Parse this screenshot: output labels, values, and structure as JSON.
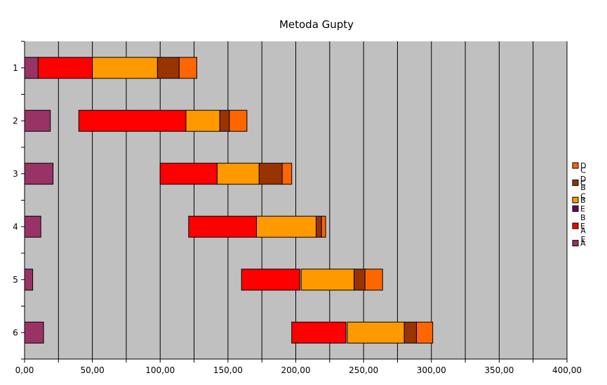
{
  "chart_data": {
    "type": "bar",
    "orientation": "horizontal",
    "stacked": true,
    "title": "Metoda Gupty",
    "xlabel": "",
    "ylabel": "",
    "xlim": [
      0,
      400
    ],
    "x_ticks": [
      0,
      25,
      50,
      75,
      100,
      125,
      150,
      175,
      200,
      225,
      250,
      275,
      300,
      325,
      350,
      375,
      400
    ],
    "x_tick_labels": [
      "0,00",
      "50,00",
      "100,00",
      "150,00",
      "200,00",
      "250,00",
      "300,00",
      "350,00",
      "400,00"
    ],
    "x_tick_label_values": [
      0,
      50,
      100,
      150,
      200,
      250,
      300,
      350,
      400
    ],
    "grid": "vertical",
    "categories": [
      "1",
      "2",
      "3",
      "4",
      "5",
      "6"
    ],
    "series": [
      {
        "name": "A",
        "color": "#993366",
        "visible": true,
        "values": [
          10,
          19,
          21,
          12,
          6,
          14
        ]
      },
      {
        "name": "E A",
        "color": "#c0c0c0",
        "visible": false,
        "values": [
          0,
          21,
          79,
          109,
          154,
          183
        ]
      },
      {
        "name": "E",
        "color": "#ff0000",
        "visible": true,
        "values": [
          40,
          79,
          42,
          50,
          43,
          40
        ]
      },
      {
        "name": "E B",
        "color": "#660066",
        "visible": false,
        "values": [
          0,
          0,
          0,
          0,
          1,
          1
        ]
      },
      {
        "name": "B",
        "color": "#ff9900",
        "visible": true,
        "values": [
          48,
          25,
          31,
          44,
          39,
          42
        ]
      },
      {
        "name": "B C",
        "color": "#c0c0c0",
        "visible": false,
        "values": [
          0,
          0,
          0,
          0,
          0,
          0
        ]
      },
      {
        "name": "C",
        "color": "#993300",
        "visible": true,
        "values": [
          16,
          7,
          17,
          4,
          8,
          9
        ]
      },
      {
        "name": "C D",
        "color": "#c0c0c0",
        "visible": false,
        "values": [
          0,
          0,
          0,
          0,
          0,
          0
        ]
      },
      {
        "name": "D",
        "color": "#ff6600",
        "visible": true,
        "values": [
          13,
          13,
          7,
          3,
          13,
          12
        ]
      }
    ],
    "legend": {
      "placement": "right",
      "entries": [
        {
          "label": "D",
          "swatch": "#ff6600",
          "has_swatch": true
        },
        {
          "label": "C D",
          "has_swatch": false
        },
        {
          "label": "C",
          "swatch": "#993300",
          "has_swatch": true
        },
        {
          "label": "B C",
          "has_swatch": false
        },
        {
          "label": "B",
          "swatch": "#ff9900",
          "has_swatch": true
        },
        {
          "label": "E",
          "swatch": "#660066",
          "has_swatch": true
        },
        {
          "label": "B",
          "has_swatch": false
        },
        {
          "label": "E",
          "swatch": "#ff0000",
          "has_swatch": true
        },
        {
          "label": "A E",
          "has_swatch": false
        },
        {
          "label": "A",
          "swatch": "#993366",
          "has_swatch": true
        }
      ]
    },
    "colors": {
      "plot_background": "#c0c0c0",
      "gridline": "#000000",
      "bar_outline": "#000000"
    }
  }
}
